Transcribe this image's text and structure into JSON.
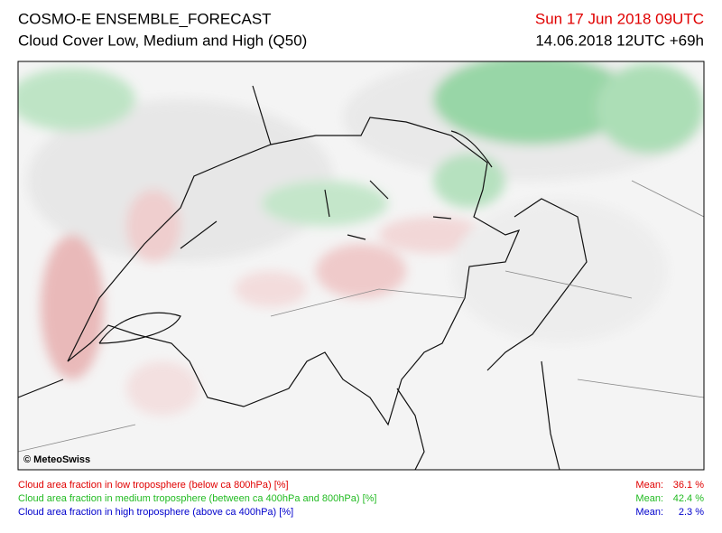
{
  "header": {
    "title": "COSMO-E ENSEMBLE_FORECAST",
    "subtitle": "Cloud Cover Low, Medium and High (Q50)",
    "valid_time": "Sun 17 Jun 2018 09UTC",
    "run_time": "14.06.2018 12UTC +69h"
  },
  "map": {
    "copyright": "© MeteoSwiss"
  },
  "legend": [
    {
      "label": "Cloud area fraction in low troposphere (below ca 800hPa) [%]",
      "mean_label": "Mean:",
      "mean": "36.1 %"
    },
    {
      "label": "Cloud area fraction in medium troposphere (between ca 400hPa and 800hPa) [%]",
      "mean_label": "Mean:",
      "mean": "42.4 %"
    },
    {
      "label": "Cloud area fraction in high troposphere (above ca 400hPa) [%]",
      "mean_label": "Mean:",
      "mean": "2.3 %"
    }
  ]
}
